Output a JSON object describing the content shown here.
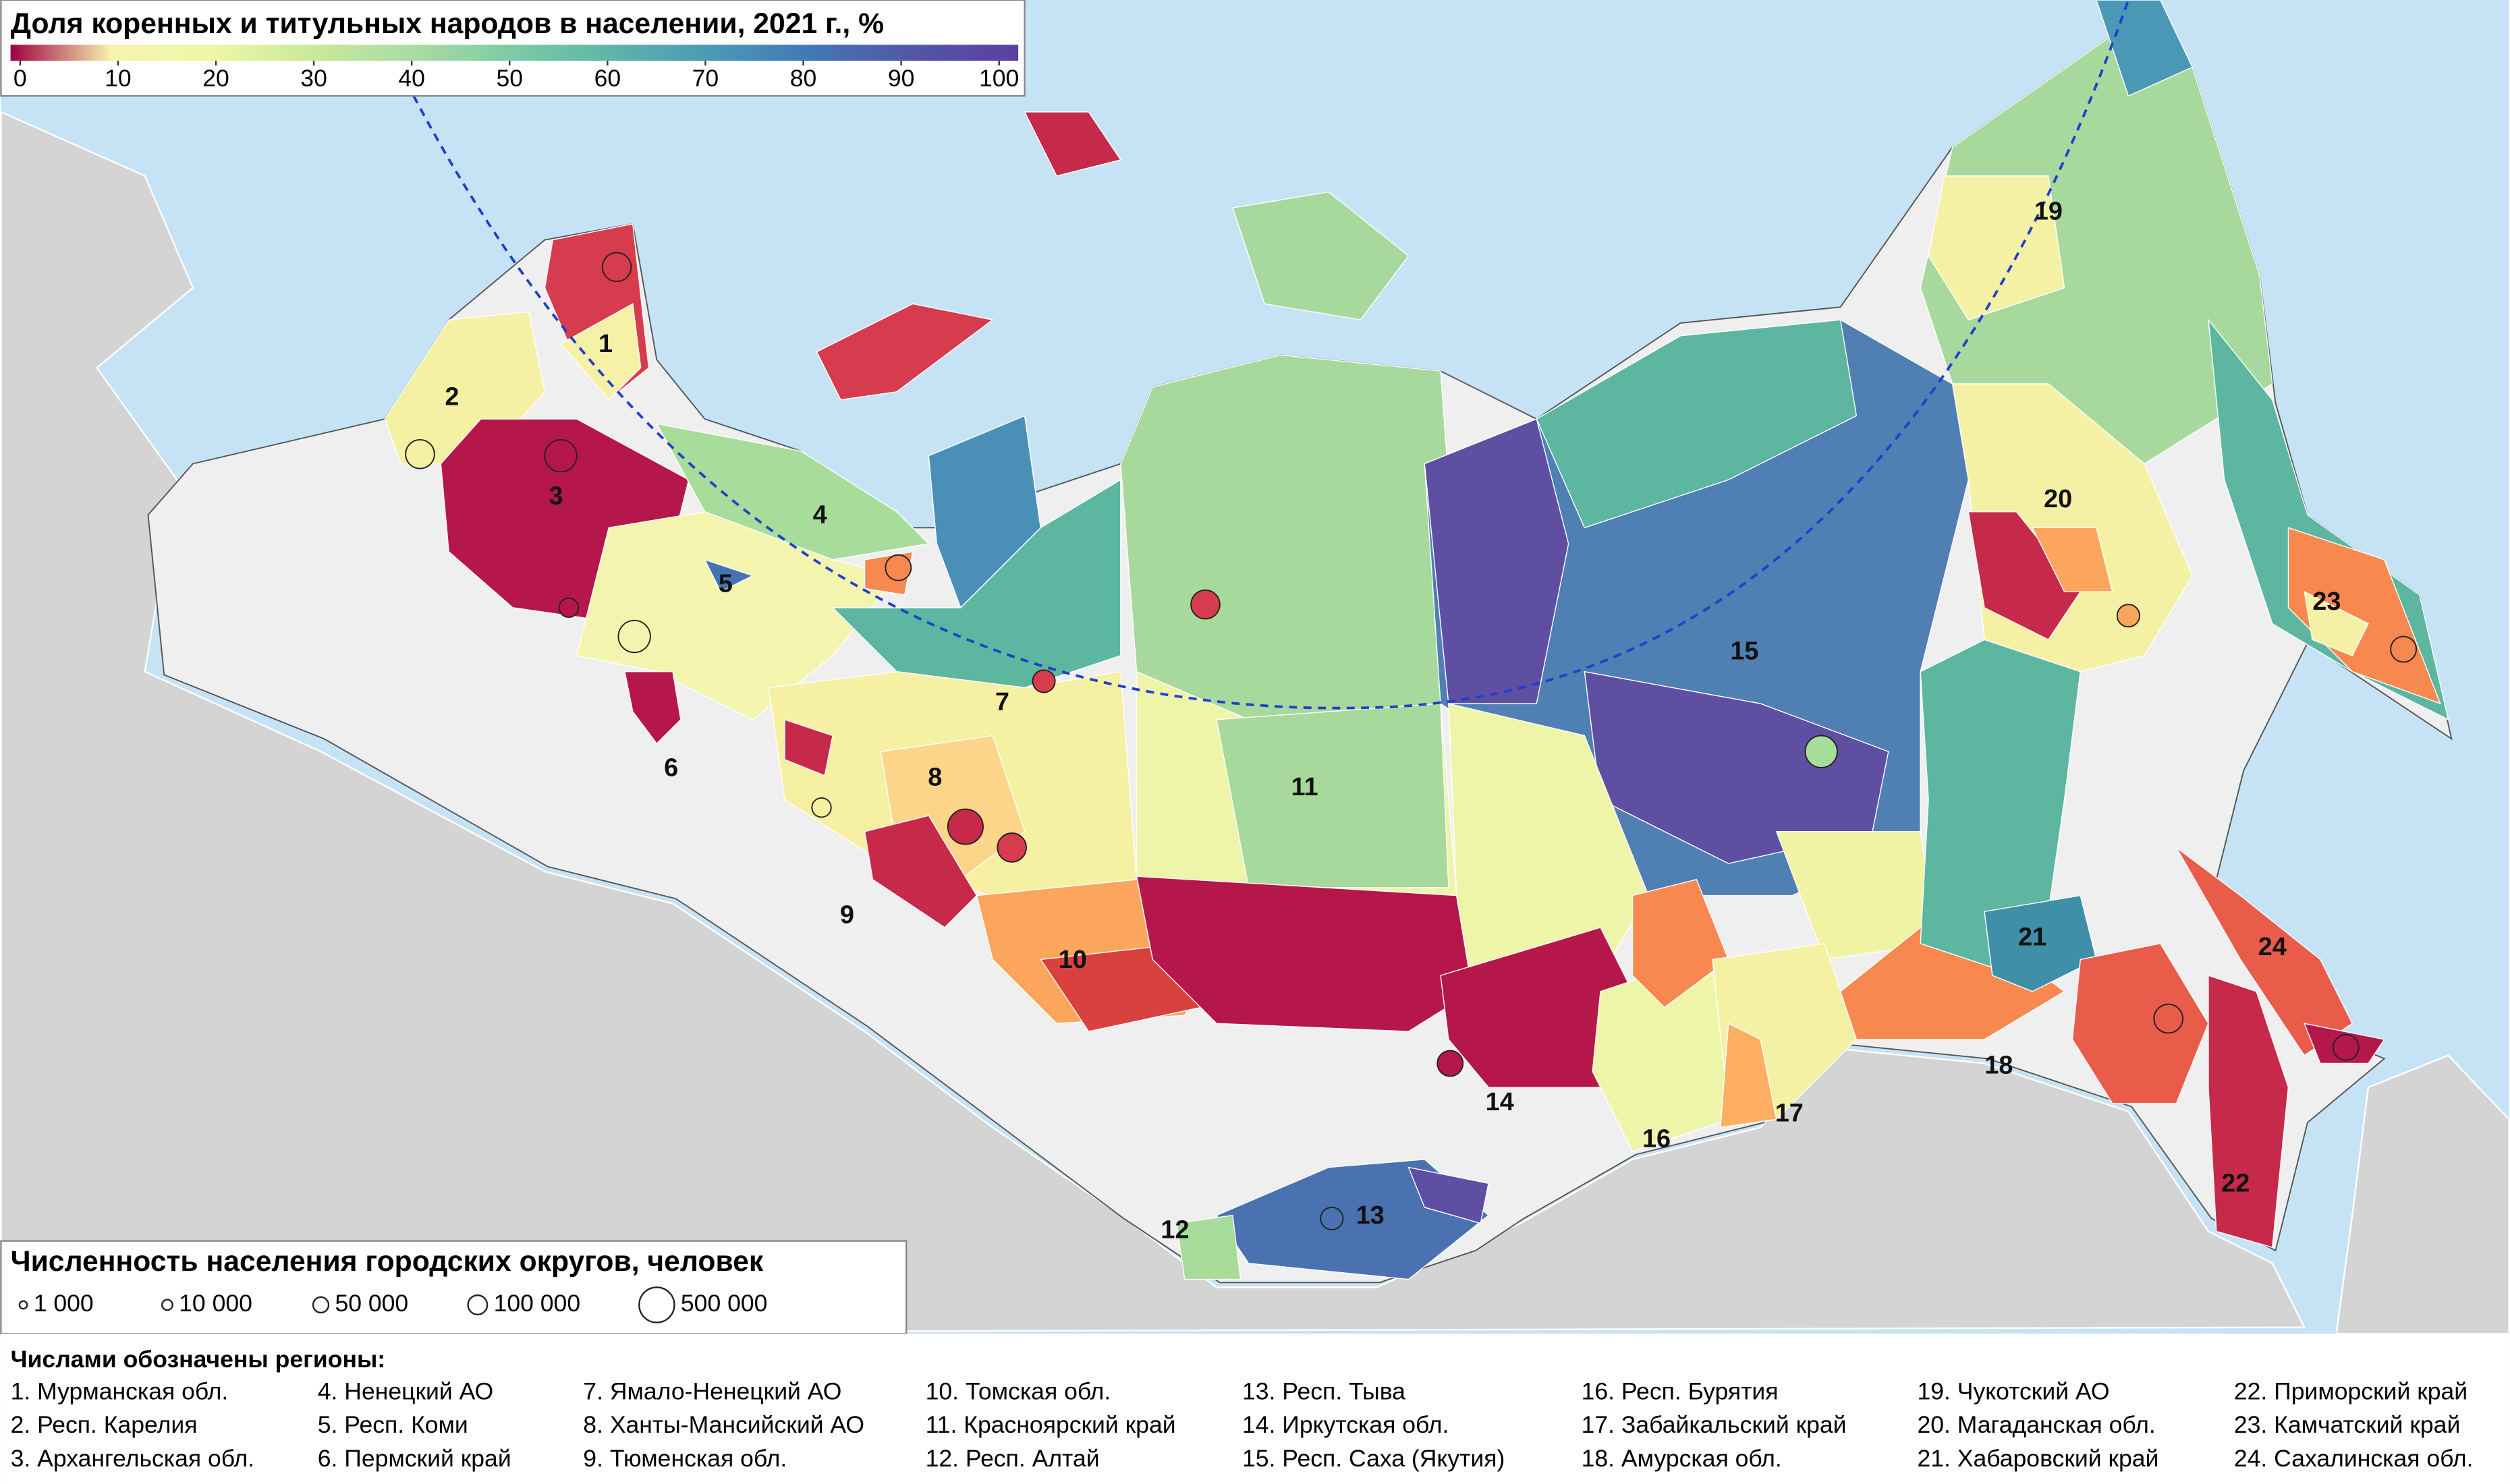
{
  "title": "Доля коренных и титульных народов в населении, 2021 г., %",
  "colorbar": {
    "range": [
      0,
      100
    ],
    "ticks": [
      0,
      10,
      20,
      30,
      40,
      50,
      60,
      70,
      80,
      90,
      100
    ],
    "colors": [
      "#9e0142",
      "#f7f3b0",
      "#eef7a6",
      "#c9e99c",
      "#a9dca2",
      "#7dcaa4",
      "#5cb4aa",
      "#4a98b6",
      "#4475b2",
      "#5256a6",
      "#5e3fa0"
    ]
  },
  "size_legend": {
    "title": "Численность населения городских округов, человек",
    "items": [
      {
        "value": 1000,
        "label": "1 000"
      },
      {
        "value": 10000,
        "label": "10 000"
      },
      {
        "value": 50000,
        "label": "50 000"
      },
      {
        "value": 100000,
        "label": "100 000"
      },
      {
        "value": 500000,
        "label": "500 000"
      }
    ]
  },
  "regions_heading": "Числами обозначены регионы:",
  "regions": [
    "1. Мурманская обл.",
    "2. Респ. Карелия",
    "3. Архангельская обл.",
    "4. Ненецкий АО",
    "5. Респ. Коми",
    "6. Пермский край",
    "7. Ямало-Ненецкий АО",
    "8. Ханты-Мансийский АО",
    "9. Тюменская обл.",
    "10. Томская обл.",
    "11. Красноярский край",
    "12. Респ. Алтай",
    "13. Респ. Тыва",
    "14. Иркутская обл.",
    "15. Респ. Саха (Якутия)",
    "16. Респ. Бурятия",
    "17. Забайкальский край",
    "18. Амурская обл.",
    "19. Чукотский АО",
    "20. Магаданская обл.",
    "21. Хабаровский край",
    "22. Приморский край",
    "23. Камчатский край",
    "24. Сахалинская обл."
  ],
  "map_labels": [
    1,
    2,
    3,
    4,
    5,
    6,
    7,
    8,
    9,
    10,
    11,
    12,
    13,
    14,
    15,
    16,
    17,
    18,
    19,
    20,
    21,
    22,
    23,
    24
  ]
}
